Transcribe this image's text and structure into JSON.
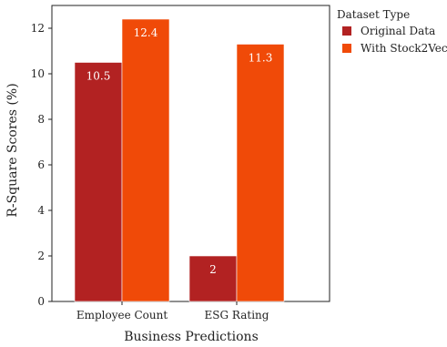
{
  "chart_data": {
    "type": "bar",
    "categories": [
      "Employee Count",
      "ESG Rating"
    ],
    "series": [
      {
        "name": "Original Data",
        "values": [
          10.5,
          2
        ],
        "color": "#b22222"
      },
      {
        "name": "With Stock2Vec",
        "values": [
          12.4,
          11.3
        ],
        "color": "#f04a08"
      }
    ],
    "xlabel": "Business Predictions",
    "ylabel": "R-Square Scores (%)",
    "ylim": [
      0,
      13
    ],
    "yticks": [
      0,
      2,
      4,
      6,
      8,
      10,
      12
    ],
    "grid": false,
    "legend": {
      "title": "Dataset Type",
      "position": "right"
    }
  }
}
